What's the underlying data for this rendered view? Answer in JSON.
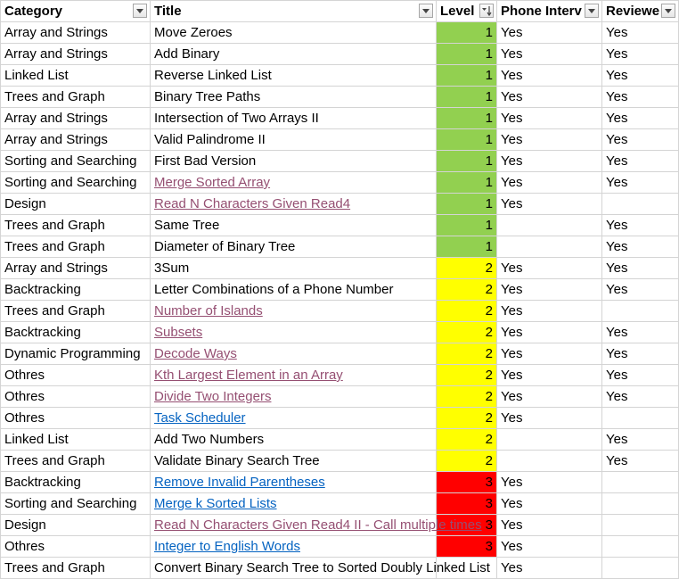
{
  "headers": {
    "category": "Category",
    "title": "Title",
    "level": "Level",
    "phone": "Phone Interv",
    "review": "Reviewe"
  },
  "rows": [
    {
      "category": "Array and Strings",
      "title": "Move Zeroes",
      "level": "1",
      "phone": "Yes",
      "review": "Yes",
      "link": "none"
    },
    {
      "category": "Array and Strings",
      "title": "Add Binary",
      "level": "1",
      "phone": "Yes",
      "review": "Yes",
      "link": "none"
    },
    {
      "category": "Linked List",
      "title": "Reverse Linked List",
      "level": "1",
      "phone": "Yes",
      "review": "Yes",
      "link": "none"
    },
    {
      "category": "Trees and Graph",
      "title": "Binary Tree Paths",
      "level": "1",
      "phone": "Yes",
      "review": "Yes",
      "link": "none"
    },
    {
      "category": "Array and Strings",
      "title": "Intersection of Two Arrays II",
      "level": "1",
      "phone": "Yes",
      "review": "Yes",
      "link": "none"
    },
    {
      "category": "Array and Strings",
      "title": "Valid Palindrome II",
      "level": "1",
      "phone": "Yes",
      "review": "Yes",
      "link": "none"
    },
    {
      "category": "Sorting and Searching",
      "title": "First Bad Version",
      "level": "1",
      "phone": "Yes",
      "review": "Yes",
      "link": "none"
    },
    {
      "category": "Sorting and Searching",
      "title": "Merge Sorted Array",
      "level": "1",
      "phone": "Yes",
      "review": "Yes",
      "link": "visited"
    },
    {
      "category": "Design",
      "title": "Read N Characters Given Read4",
      "level": "1",
      "phone": "Yes",
      "review": "",
      "link": "visited"
    },
    {
      "category": "Trees and Graph",
      "title": "Same Tree",
      "level": "1",
      "phone": "",
      "review": "Yes",
      "link": "none"
    },
    {
      "category": "Trees and Graph",
      "title": "Diameter of Binary Tree",
      "level": "1",
      "phone": "",
      "review": "Yes",
      "link": "none"
    },
    {
      "category": "Array and Strings",
      "title": "3Sum",
      "level": "2",
      "phone": "Yes",
      "review": "Yes",
      "link": "none"
    },
    {
      "category": "Backtracking",
      "title": "Letter Combinations of a Phone Number",
      "level": "2",
      "phone": "Yes",
      "review": "Yes",
      "link": "none"
    },
    {
      "category": "Trees and Graph",
      "title": "Number of Islands",
      "level": "2",
      "phone": "Yes",
      "review": "",
      "link": "visited"
    },
    {
      "category": "Backtracking",
      "title": "Subsets",
      "level": "2",
      "phone": "Yes",
      "review": "Yes",
      "link": "visited"
    },
    {
      "category": "Dynamic Programming",
      "title": "Decode Ways",
      "level": "2",
      "phone": "Yes",
      "review": "Yes",
      "link": "visited"
    },
    {
      "category": "Othres",
      "title": "Kth Largest Element in an Array",
      "level": "2",
      "phone": "Yes",
      "review": "Yes",
      "link": "visited"
    },
    {
      "category": "Othres",
      "title": "Divide Two Integers",
      "level": "2",
      "phone": "Yes",
      "review": "Yes",
      "link": "visited"
    },
    {
      "category": "Othres",
      "title": "Task Scheduler",
      "level": "2",
      "phone": "Yes",
      "review": "",
      "link": "new"
    },
    {
      "category": "Linked List",
      "title": "Add Two Numbers",
      "level": "2",
      "phone": "",
      "review": "Yes",
      "link": "none"
    },
    {
      "category": "Trees and Graph",
      "title": "Validate Binary Search Tree",
      "level": "2",
      "phone": "",
      "review": "Yes",
      "link": "none"
    },
    {
      "category": "Backtracking",
      "title": "Remove Invalid Parentheses",
      "level": "3",
      "phone": "Yes",
      "review": "",
      "link": "new"
    },
    {
      "category": "Sorting and Searching",
      "title": "Merge k Sorted Lists",
      "level": "3",
      "phone": "Yes",
      "review": "",
      "link": "new"
    },
    {
      "category": "Design",
      "title": "Read N Characters Given Read4 II - Call multiple times",
      "level": "3",
      "phone": "Yes",
      "review": "",
      "link": "visited"
    },
    {
      "category": "Othres",
      "title": "Integer to English Words",
      "level": "3",
      "phone": "Yes",
      "review": "",
      "link": "new"
    },
    {
      "category": "Trees and Graph",
      "title": "Convert Binary Search Tree to Sorted Doubly Linked List",
      "level": "",
      "phone": "Yes",
      "review": "",
      "link": "none"
    }
  ],
  "colors": {
    "level1": "#92d050",
    "level2": "#ffff00",
    "level3": "#ff0000",
    "link_visited": "#954f72",
    "link_new": "#0563c1",
    "gridline": "#d4d4d4"
  }
}
